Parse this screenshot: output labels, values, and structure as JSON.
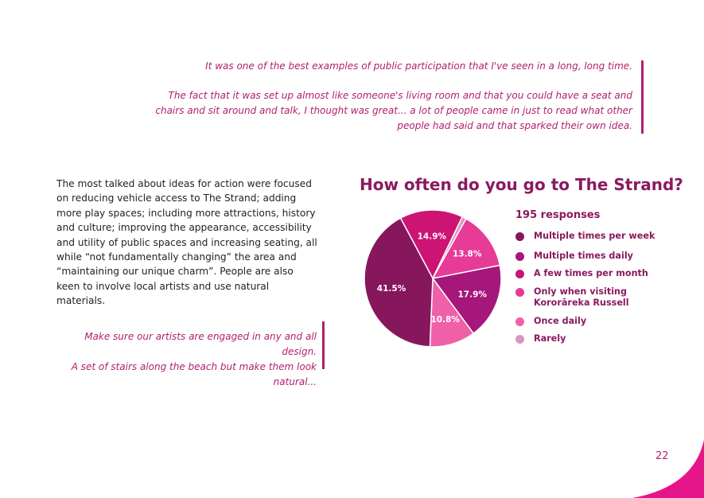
{
  "quote_top": {
    "line1": "It was one of the best examples of public participation that I've seen in a long, long time.",
    "line2": "The fact that it was set up almost like someone's living room and that you could have a seat and chairs and sit around and talk, I thought was great... a lot of people came in just to read what other people had said and that sparked their own idea."
  },
  "body_text": "The most talked about ideas for action were focused on reducing vehicle access to The Strand; adding more play spaces; including more attractions, history and culture; improving the appearance, accessibility and utility of public spaces and increasing seating, all while “not fundamentally changing” the area and “maintaining our unique charm”. People are also keen to involve local artists and use natural materials.",
  "quote_left": {
    "line1": "Make sure our artists are engaged in any and all design.",
    "line2": "A set of stairs along the beach but make them look natural..."
  },
  "page_number": "22",
  "colors": {
    "accent": "#b01f6e",
    "title": "#8a1a5e"
  },
  "chart_data": {
    "type": "pie",
    "title": "How often do you go to The Strand?",
    "subtitle": "195 responses",
    "legend_position": "right",
    "slices": [
      {
        "label": "Multiple times per week",
        "value": 41.5,
        "label_text": "41.5%",
        "color": "#86175c"
      },
      {
        "label": "Multiple times daily",
        "value": 17.9,
        "label_text": "17.9%",
        "color": "#a5177a"
      },
      {
        "label": "A few times per month",
        "value": 14.9,
        "label_text": "14.9%",
        "color": "#cd1373"
      },
      {
        "label": "Only when visiting Kororāreka Russell",
        "value": 13.8,
        "label_text": "13.8%",
        "color": "#e63b97"
      },
      {
        "label": "Once daily",
        "value": 10.8,
        "label_text": "10.8%",
        "color": "#f060a8"
      },
      {
        "label": "Rarely",
        "value": 1.0,
        "label_text": "",
        "color": "#d996c0"
      }
    ]
  }
}
